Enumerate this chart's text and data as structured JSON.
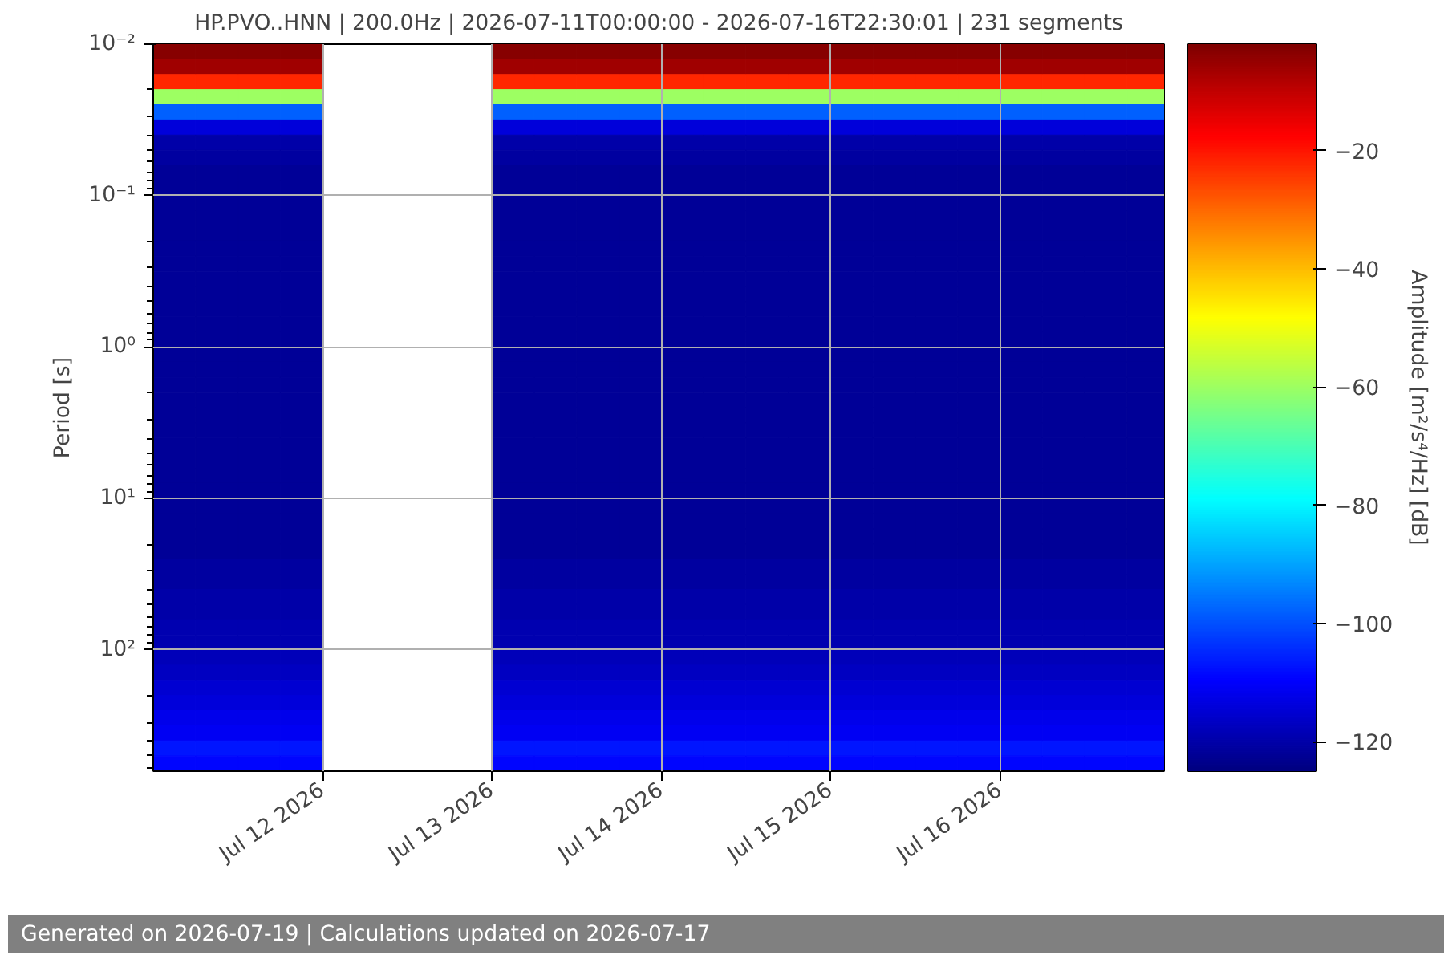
{
  "chart_data": {
    "type": "heatmap",
    "title": "HP.PVO..HNN | 200.0Hz | 2026-07-11T00:00:00 - 2026-07-16T22:30:01 | 231 segments",
    "ylabel": "Period [s]",
    "clabel": "Amplitude [m²/s⁴/Hz] [dB]",
    "annotations": [
      "Generated on 2026-07-19 | Calculations updated on 2026-07-17"
    ],
    "x": [
      "2026-07-11T00:00",
      "2026-07-11T06:00",
      "2026-07-11T12:00",
      "2026-07-11T18:00",
      "2026-07-12T00:00",
      "2026-07-12T06:00",
      "2026-07-12T12:00",
      "2026-07-12T18:00",
      "2026-07-13T00:00",
      "2026-07-13T06:00",
      "2026-07-13T12:00",
      "2026-07-13T18:00",
      "2026-07-14T00:00",
      "2026-07-14T06:00",
      "2026-07-14T12:00",
      "2026-07-14T18:00",
      "2026-07-15T00:00",
      "2026-07-15T06:00",
      "2026-07-15T12:00",
      "2026-07-15T18:00",
      "2026-07-16T00:00",
      "2026-07-16T06:00",
      "2026-07-16T12:00",
      "2026-07-16T18:00"
    ],
    "cells": [
      [
        -3,
        -3,
        -3,
        -3,
        null,
        null,
        null,
        null,
        -3,
        -3,
        -3,
        -3,
        -3,
        -3,
        -3,
        -3,
        -3,
        -3,
        -3,
        -3,
        -3,
        -3,
        -3,
        -3
      ],
      [
        -6,
        -6,
        -6,
        -6,
        null,
        null,
        null,
        null,
        -6,
        -6,
        -6,
        -6,
        -6,
        -6,
        -6,
        -6,
        -6,
        -6,
        -6,
        -6,
        -6,
        -6,
        -6,
        -6
      ],
      [
        -22,
        -22,
        -22,
        -22,
        null,
        null,
        null,
        null,
        -22,
        -22,
        -22,
        -22,
        -22,
        -22,
        -22,
        -22,
        -22,
        -22,
        -22,
        -22,
        -22,
        -22,
        -22,
        -22
      ],
      [
        -60,
        -60,
        -60,
        -60,
        null,
        null,
        null,
        null,
        -60,
        -60,
        -60,
        -60,
        -60,
        -60,
        -60,
        -60,
        -60,
        -60,
        -60,
        -60,
        -60,
        -60,
        -60,
        -60
      ],
      [
        -98,
        -98,
        -98,
        -98,
        null,
        null,
        null,
        null,
        -98,
        -98,
        -98,
        -98,
        -98,
        -98,
        -98,
        -98,
        -98,
        -98,
        -98,
        -98,
        -98,
        -98,
        -98,
        -98
      ],
      [
        -114,
        -114,
        -114,
        -114,
        null,
        null,
        null,
        null,
        -114,
        -114,
        -114,
        -114,
        -114,
        -114,
        -114,
        -114,
        -114,
        -114,
        -114,
        -114,
        -114,
        -114,
        -114,
        -114
      ],
      [
        -120,
        -120,
        -120,
        -120,
        null,
        null,
        null,
        null,
        -120,
        -120,
        -120,
        -120,
        -120,
        -120,
        -120,
        -120,
        -120,
        -120,
        -120,
        -120,
        -120,
        -120,
        -120,
        -120
      ],
      [
        -121,
        -121,
        -121,
        -121,
        null,
        null,
        null,
        null,
        -121,
        -121,
        -121,
        -121,
        -121,
        -121,
        -121,
        -121,
        -121,
        -121,
        -121,
        -121,
        -121,
        -121,
        -121,
        -121
      ],
      [
        -122,
        -122,
        -122,
        -122,
        null,
        null,
        null,
        null,
        -122,
        -122,
        -122,
        -122,
        -122,
        -122,
        -122,
        -122,
        -122,
        -122,
        -122,
        -122,
        -122,
        -122,
        -122,
        -122
      ],
      [
        -122,
        -122,
        -122,
        -122,
        null,
        null,
        null,
        null,
        -122,
        -122,
        -122,
        -122,
        -122,
        -122,
        -122,
        -122,
        -122,
        -122,
        -122,
        -122,
        -122,
        -122,
        -122,
        -122
      ],
      [
        -122,
        -122,
        -122,
        -122,
        null,
        null,
        null,
        null,
        -122,
        -122,
        -122,
        -122,
        -122,
        -122,
        -122,
        -122,
        -122,
        -122,
        -122,
        -122,
        -122,
        -122,
        -122,
        -122
      ],
      [
        -122,
        -122,
        -122,
        -122,
        null,
        null,
        null,
        null,
        -122,
        -122,
        -122,
        -122,
        -122,
        -122,
        -122,
        -122,
        -122,
        -122,
        -122,
        -122,
        -122,
        -122,
        -122,
        -122
      ],
      [
        -122,
        -122,
        -122,
        -122,
        null,
        null,
        null,
        null,
        -122,
        -122,
        -122,
        -122,
        -122,
        -122,
        -122,
        -122,
        -122,
        -122,
        -122,
        -122,
        -122,
        -122,
        -122,
        -122
      ],
      [
        -122,
        -122,
        -122,
        -122,
        null,
        null,
        null,
        null,
        -122,
        -122,
        -122,
        -122,
        -122,
        -122,
        -122,
        -122,
        -122,
        -122,
        -122,
        -122,
        -122,
        -122,
        -122,
        -122
      ],
      [
        -122,
        -122,
        -122,
        -122,
        null,
        null,
        null,
        null,
        -122,
        -122,
        -122,
        -122,
        -122,
        -122,
        -122,
        -122,
        -122,
        -122,
        -122,
        -122,
        -122,
        -122,
        -122,
        -122
      ],
      [
        -122,
        -122,
        -122,
        -122,
        null,
        null,
        null,
        null,
        -122,
        -122,
        -122,
        -122,
        -122,
        -122,
        -122,
        -122,
        -122,
        -122,
        -122,
        -122,
        -122,
        -122,
        -122,
        -122
      ],
      [
        -122,
        -122,
        -122,
        -122,
        null,
        null,
        null,
        null,
        -122,
        -122,
        -122,
        -122,
        -122,
        -122,
        -122,
        -122,
        -122,
        -122,
        -122,
        -122,
        -122,
        -122,
        -122,
        -122
      ],
      [
        -122,
        -122,
        -122,
        -122,
        null,
        null,
        null,
        null,
        -122,
        -122,
        -122,
        -122,
        -122,
        -122,
        -122,
        -122,
        -122,
        -122,
        -122,
        -122,
        -122,
        -122,
        -122,
        -122
      ],
      [
        -122,
        -122,
        -122,
        -122,
        null,
        null,
        null,
        null,
        -122,
        -122,
        -122,
        -122,
        -122,
        -122,
        -122,
        -122,
        -122,
        -122,
        -122,
        -122,
        -122,
        -122,
        -122,
        -122
      ],
      [
        -122,
        -122,
        -122,
        -122,
        null,
        null,
        null,
        null,
        -122,
        -122,
        -122,
        -122,
        -122,
        -122,
        -122,
        -122,
        -122,
        -122,
        -122,
        -122,
        -122,
        -122,
        -122,
        -122
      ],
      [
        -122,
        -122,
        -122,
        -122,
        null,
        null,
        null,
        null,
        -122,
        -122,
        -122,
        -122,
        -122,
        -122,
        -122,
        -122,
        -122,
        -122,
        -122,
        -122,
        -122,
        -122,
        -122,
        -122
      ],
      [
        -122,
        -122,
        -122,
        -122,
        null,
        null,
        null,
        null,
        -122,
        -122,
        -122,
        -122,
        -122,
        -122,
        -122,
        -122,
        -122,
        -122,
        -122,
        -122,
        -122,
        -122,
        -122,
        -122
      ],
      [
        -122,
        -122,
        -122,
        -122,
        null,
        null,
        null,
        null,
        -122,
        -122,
        -122,
        -122,
        -122,
        -122,
        -122,
        -122,
        -122,
        -122,
        -122,
        -122,
        -122,
        -122,
        -122,
        -122
      ],
      [
        -122,
        -122,
        -122,
        -122,
        null,
        null,
        null,
        null,
        -122,
        -122,
        -122,
        -122,
        -122,
        -122,
        -122,
        -122,
        -122,
        -122,
        -122,
        -122,
        -122,
        -122,
        -122,
        -122
      ],
      [
        -122,
        -122,
        -122,
        -122,
        null,
        null,
        null,
        null,
        -122,
        -122,
        -122,
        -122,
        -122,
        -122,
        -122,
        -122,
        -122,
        -122,
        -122,
        -122,
        -122,
        -122,
        -122,
        -122
      ],
      [
        -122,
        -122,
        -122,
        -122,
        null,
        null,
        null,
        null,
        -122,
        -122,
        -122,
        -122,
        -122,
        -122,
        -122,
        -122,
        -122,
        -122,
        -122,
        -122,
        -122,
        -122,
        -122,
        -122
      ],
      [
        -122,
        -122,
        -122,
        -122,
        null,
        null,
        null,
        null,
        -122,
        -122,
        -122,
        -122,
        -122,
        -122,
        -122,
        -122,
        -122,
        -122,
        -122,
        -122,
        -122,
        -122,
        -122,
        -122
      ],
      [
        -122,
        -122,
        -122,
        -122,
        null,
        null,
        null,
        null,
        -122,
        -122,
        -122,
        -122,
        -122,
        -122,
        -122,
        -122,
        -122,
        -122,
        -122,
        -122,
        -122,
        -122,
        -122,
        -122
      ],
      [
        -122,
        -122,
        -122,
        -122,
        null,
        null,
        null,
        null,
        -122,
        -122,
        -122,
        -122,
        -122,
        -122,
        -122,
        -122,
        -122,
        -122,
        -122,
        -122,
        -122,
        -122,
        -122,
        -122
      ],
      [
        -122,
        -122,
        -122,
        -122,
        null,
        null,
        null,
        null,
        -122,
        -122,
        -122,
        -122,
        -122,
        -122,
        -122,
        -122,
        -122,
        -122,
        -122,
        -122,
        -122,
        -122,
        -122,
        -122
      ],
      [
        -122,
        -122,
        -122,
        -122,
        null,
        null,
        null,
        null,
        -122,
        -122,
        -122,
        -122,
        -122,
        -122,
        -122,
        -122,
        -122,
        -122,
        -122,
        -122,
        -122,
        -122,
        -122,
        -122
      ],
      [
        -122,
        -122,
        -122,
        -122,
        null,
        null,
        null,
        null,
        -122,
        -122,
        -122,
        -122,
        -122,
        -122,
        -122,
        -122,
        -122,
        -122,
        -122,
        -122,
        -122,
        -122,
        -122,
        -122
      ],
      [
        -122,
        -122,
        -122,
        -122,
        null,
        null,
        null,
        null,
        -122,
        -122,
        -122,
        -122,
        -122,
        -122,
        -122,
        -122,
        -122,
        -122,
        -122,
        -122,
        -122,
        -122,
        -122,
        -122
      ],
      [
        -122,
        -122,
        -122,
        -122,
        null,
        null,
        null,
        null,
        -122,
        -122,
        -122,
        -122,
        -122,
        -122,
        -122,
        -122,
        -122,
        -122,
        -122,
        -122,
        -122,
        -122,
        -122,
        -122
      ],
      [
        -121,
        -121,
        -121,
        -121,
        null,
        null,
        null,
        null,
        -121,
        -121,
        -121,
        -121,
        -121,
        -121,
        -121,
        -121,
        -121,
        -121,
        -121,
        -121,
        -121,
        -121,
        -121,
        -121
      ],
      [
        -121,
        -121,
        -121,
        -121,
        null,
        null,
        null,
        null,
        -121,
        -121,
        -121,
        -121,
        -121,
        -121,
        -121,
        -121,
        -121,
        -121,
        -121,
        -121,
        -121,
        -121,
        -121,
        -121
      ],
      [
        -120,
        -120,
        -120,
        -120,
        null,
        null,
        null,
        null,
        -120,
        -120,
        -120,
        -120,
        -120,
        -120,
        -120,
        -120,
        -120,
        -120,
        -120,
        -120,
        -120,
        -120,
        -120,
        -120
      ],
      [
        -120,
        -120,
        -120,
        -120,
        null,
        null,
        null,
        null,
        -120,
        -120,
        -120,
        -120,
        -120,
        -120,
        -120,
        -120,
        -120,
        -120,
        -120,
        -120,
        -120,
        -120,
        -120,
        -120
      ],
      [
        -119,
        -119,
        -119,
        -119,
        null,
        null,
        null,
        null,
        -119,
        -119,
        -119,
        -119,
        -119,
        -119,
        -119,
        -119,
        -119,
        -119,
        -119,
        -119,
        -119,
        -119,
        -119,
        -119
      ],
      [
        -119,
        -119,
        -119,
        -119,
        null,
        null,
        null,
        null,
        -119,
        -119,
        -119,
        -119,
        -119,
        -119,
        -119,
        -119,
        -119,
        -119,
        -119,
        -119,
        -119,
        -119,
        -119,
        -119
      ],
      [
        -118,
        -118,
        -118,
        -118,
        null,
        null,
        null,
        null,
        -118,
        -118,
        -118,
        -118,
        -118,
        -118,
        -118,
        -118,
        -118,
        -118,
        -118,
        -118,
        -118,
        -118,
        -118,
        -118
      ],
      [
        -117,
        -117,
        -117,
        -117,
        null,
        null,
        null,
        null,
        -117,
        -117,
        -117,
        -117,
        -117,
        -117,
        -117,
        -117,
        -117,
        -117,
        -117,
        -117,
        -117,
        -117,
        -117,
        -117
      ],
      [
        -115,
        -115,
        -115,
        -115,
        null,
        null,
        null,
        null,
        -115,
        -115,
        -115,
        -115,
        -115,
        -115,
        -115,
        -115,
        -115,
        -115,
        -115,
        -115,
        -115,
        -115,
        -115,
        -115
      ],
      [
        -114,
        -114,
        -114,
        -114,
        null,
        null,
        null,
        null,
        -114,
        -114,
        -114,
        -114,
        -114,
        -114,
        -114,
        -114,
        -114,
        -114,
        -114,
        -114,
        -114,
        -114,
        -114,
        -114
      ],
      [
        -112,
        -112,
        -112,
        -112,
        null,
        null,
        null,
        null,
        -112,
        -112,
        -112,
        -112,
        -112,
        -112,
        -112,
        -112,
        -112,
        -112,
        -112,
        -112,
        -112,
        -112,
        -112,
        -112
      ],
      [
        -111,
        -111,
        -111,
        -111,
        null,
        null,
        null,
        null,
        -111,
        -111,
        -111,
        -111,
        -111,
        -111,
        -111,
        -111,
        -111,
        -111,
        -111,
        -111,
        -111,
        -111,
        -111,
        -111
      ],
      [
        -107,
        -107,
        -107,
        -107,
        null,
        null,
        null,
        null,
        -107,
        -107,
        -107,
        -107,
        -107,
        -107,
        -107,
        -107,
        -107,
        -107,
        -107,
        -107,
        -107,
        -107,
        -107,
        -107
      ],
      [
        -109,
        -109,
        -109,
        -109,
        null,
        null,
        null,
        null,
        -109,
        -109,
        -109,
        -109,
        -109,
        -109,
        -109,
        -109,
        -109,
        -109,
        -109,
        -109,
        -109,
        -109,
        -109,
        -109
      ]
    ],
    "xlim": [
      "2026-07-11T00:00",
      "2026-07-16T23:15"
    ],
    "xticks": [
      {
        "value": "2026-07-12",
        "label": "Jul 12 2026"
      },
      {
        "value": "2026-07-13",
        "label": "Jul 13 2026"
      },
      {
        "value": "2026-07-14",
        "label": "Jul 14 2026"
      },
      {
        "value": "2026-07-15",
        "label": "Jul 15 2026"
      },
      {
        "value": "2026-07-16",
        "label": "Jul 16 2026"
      }
    ],
    "ylim": [
      631,
      0.01
    ],
    "yticks": [
      {
        "value": 0.01,
        "label": "10⁻²"
      },
      {
        "value": 0.1,
        "label": "10⁻¹"
      },
      {
        "value": 1,
        "label": "10⁰"
      },
      {
        "value": 10,
        "label": "10¹"
      },
      {
        "value": 100,
        "label": "10²"
      }
    ],
    "log": "y",
    "grid": true,
    "clim": [
      -125,
      -2
    ],
    "cticks": [
      -120,
      -100,
      -80,
      -60,
      -40,
      -20
    ]
  }
}
